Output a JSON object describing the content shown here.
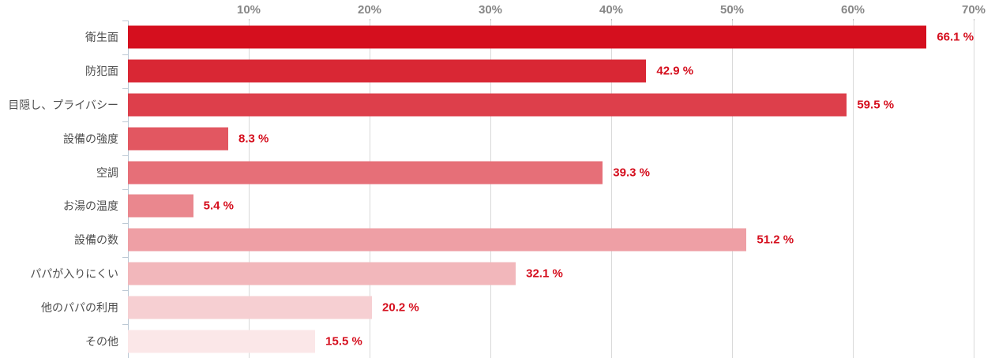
{
  "chart_data": {
    "type": "bar",
    "orientation": "horizontal",
    "title": "",
    "xlabel": "",
    "ylabel": "",
    "categories": [
      "衛生面",
      "防犯面",
      "目隠し、プライバシー",
      "設備の強度",
      "空調",
      "お湯の温度",
      "設備の数",
      "パパが入りにくい",
      "他のパパの利用",
      "その他"
    ],
    "values": [
      66.1,
      42.9,
      59.5,
      8.3,
      39.3,
      5.4,
      51.2,
      32.1,
      20.2,
      15.5
    ],
    "value_labels": [
      "66.1 %",
      "42.9 %",
      "59.5 %",
      "8.3 %",
      "39.3 %",
      "5.4 %",
      "51.2 %",
      "32.1 %",
      "20.2 %",
      "15.5 %"
    ],
    "bar_colors": [
      "#d50f1e",
      "#d92734",
      "#dd3f4b",
      "#e25761",
      "#e66f78",
      "#ea878e",
      "#ee9fa5",
      "#f2b7bb",
      "#f6cfd2",
      "#fbe7e8"
    ],
    "x_axis": {
      "position": "top",
      "min": 0,
      "max": 70,
      "tick_values": [
        10,
        20,
        30,
        40,
        50,
        60,
        70
      ],
      "tick_labels": [
        "10%",
        "20%",
        "30%",
        "40%",
        "50%",
        "60%",
        "70%"
      ]
    },
    "grid": true,
    "legend": false
  },
  "style": {
    "value_label_color": "#d50f1e",
    "category_label_color": "#4d4d4d",
    "axis_tick_label_color": "#878787",
    "gridline_color": "#d9d9d9",
    "axis_line_color": "#bcc9d5",
    "background_color": "#ffffff"
  }
}
